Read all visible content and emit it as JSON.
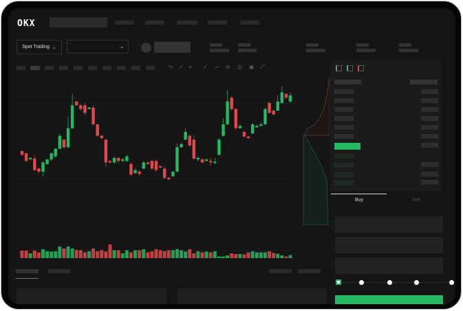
{
  "header": {
    "logo": "OKX"
  },
  "market": {
    "mode_selector": "Spot Trading",
    "pair_selector": ""
  },
  "toolbar": {
    "icons": [
      "indicators-icon",
      "compare-icon",
      "draw-icon",
      "line-icon",
      "pen-icon",
      "camera-icon",
      "settings-icon",
      "fullscreen-icon"
    ]
  },
  "orderbook": {
    "view_icons": [
      "both-sides-icon",
      "bids-only-icon",
      "asks-only-icon"
    ]
  },
  "trade": {
    "tabs": [
      "Buy",
      "Sell"
    ],
    "active_tab": "Buy",
    "leverage_slider_steps": 5,
    "slider_value": 0
  },
  "colors": {
    "up": "#25b863",
    "down": "#e0494b",
    "background": "#151515"
  },
  "chart_data": {
    "type": "candlestick",
    "candles": [
      [
        95,
        90,
        96,
        89
      ],
      [
        92,
        82,
        93,
        81
      ],
      [
        84,
        86,
        87,
        84
      ],
      [
        85,
        70,
        90,
        69
      ],
      [
        72,
        68,
        73,
        66
      ],
      [
        68,
        80,
        82,
        62
      ],
      [
        78,
        84,
        85,
        77
      ],
      [
        84,
        92,
        93,
        82
      ],
      [
        88,
        98,
        99,
        86
      ],
      [
        98,
        115,
        118,
        97
      ],
      [
        110,
        100,
        104,
        98
      ],
      [
        100,
        125,
        140,
        99
      ],
      [
        125,
        155,
        170,
        124
      ],
      [
        160,
        155,
        161,
        154
      ],
      [
        155,
        150,
        156,
        148
      ],
      [
        155,
        145,
        158,
        142
      ],
      [
        150,
        152,
        153,
        150
      ],
      [
        152,
        130,
        155,
        129
      ],
      [
        130,
        115,
        131,
        114
      ],
      [
        115,
        112,
        116,
        110
      ],
      [
        110,
        80,
        111,
        75
      ],
      [
        82,
        80,
        83,
        79
      ],
      [
        80,
        86,
        88,
        78
      ],
      [
        86,
        82,
        87,
        79
      ],
      [
        84,
        84,
        86,
        80
      ],
      [
        82,
        88,
        90,
        81
      ],
      [
        78,
        64,
        80,
        62
      ],
      [
        66,
        70,
        72,
        65
      ],
      [
        68,
        65,
        70,
        62
      ],
      [
        72,
        80,
        82,
        71
      ],
      [
        80,
        78,
        81,
        77
      ],
      [
        82,
        72,
        84,
        70
      ],
      [
        82,
        70,
        84,
        68
      ],
      [
        75,
        74,
        76,
        74
      ],
      [
        72,
        60,
        75,
        58
      ],
      [
        60,
        58,
        61,
        57
      ],
      [
        62,
        68,
        69,
        61
      ],
      [
        68,
        100,
        105,
        67
      ],
      [
        100,
        104,
        106,
        99
      ],
      [
        110,
        120,
        125,
        109
      ],
      [
        115,
        102,
        117,
        101
      ],
      [
        110,
        85,
        116,
        84
      ],
      [
        84,
        86,
        88,
        82
      ],
      [
        84,
        80,
        86,
        79
      ],
      [
        82,
        84,
        85,
        82
      ],
      [
        82,
        81,
        86,
        76
      ],
      [
        80,
        81,
        86,
        78
      ],
      [
        90,
        110,
        112,
        89
      ],
      [
        115,
        130,
        138,
        114
      ],
      [
        130,
        160,
        175,
        129
      ],
      [
        165,
        150,
        167,
        148
      ],
      [
        150,
        125,
        152,
        122
      ],
      [
        125,
        128,
        130,
        124
      ],
      [
        120,
        114,
        122,
        113
      ],
      [
        114,
        112,
        115,
        111
      ],
      [
        118,
        130,
        132,
        117
      ],
      [
        126,
        128,
        130,
        126
      ],
      [
        128,
        130,
        133,
        127
      ],
      [
        130,
        150,
        152,
        129
      ],
      [
        158,
        145,
        160,
        144
      ],
      [
        148,
        143,
        149,
        142
      ],
      [
        148,
        160,
        168,
        147
      ],
      [
        158,
        172,
        180,
        157
      ],
      [
        170,
        165,
        171,
        163
      ],
      [
        160,
        168,
        172,
        158
      ]
    ],
    "volume": [
      0.55,
      0.55,
      0.35,
      0.55,
      0.42,
      0.65,
      0.5,
      0.48,
      0.5,
      0.85,
      0.7,
      0.85,
      0.7,
      0.6,
      0.58,
      0.42,
      0.5,
      0.7,
      0.5,
      0.58,
      0.48,
      1.0,
      0.58,
      0.58,
      0.35,
      0.58,
      0.42,
      0.58,
      0.58,
      0.65,
      0.42,
      0.5,
      0.65,
      0.58,
      0.5,
      0.58,
      0.58,
      0.65,
      0.58,
      0.48,
      0.65,
      0.35,
      0.5,
      0.42,
      0.48,
      0.42,
      0.5,
      0.12,
      0.12,
      0.2,
      0.35,
      0.3,
      0.3,
      0.28,
      0.42,
      0.5,
      0.42,
      0.42,
      0.42,
      0.5,
      0.38,
      0.32,
      0.2,
      0.12,
      0.22
    ]
  }
}
